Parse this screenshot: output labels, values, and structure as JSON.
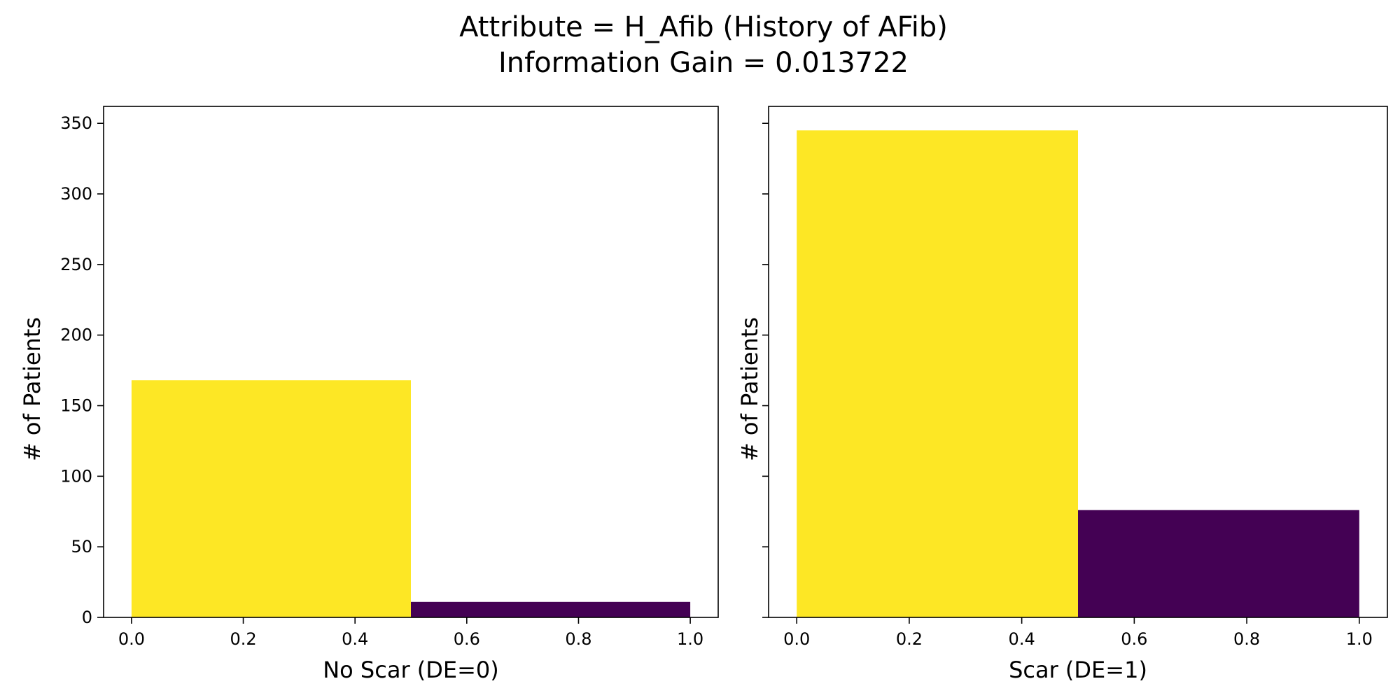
{
  "figure": {
    "title_line1": "Attribute = H_Afib (History of AFib)",
    "title_line2": "Information Gain = 0.013722"
  },
  "colors": {
    "yellow": "#fde725",
    "purple": "#440154",
    "axis": "#000000"
  },
  "chart_data": [
    {
      "type": "bar",
      "xlabel": "No Scar (DE=0)",
      "ylabel": "# of Patients",
      "xlim": [
        -0.05,
        1.05
      ],
      "ylim": [
        0,
        362
      ],
      "xticks": [
        0.0,
        0.2,
        0.4,
        0.6,
        0.8,
        1.0
      ],
      "xtick_labels": [
        "0.0",
        "0.2",
        "0.4",
        "0.6",
        "0.8",
        "1.0"
      ],
      "yticks": [
        0,
        50,
        100,
        150,
        200,
        250,
        300,
        350
      ],
      "ytick_labels": [
        "0",
        "50",
        "100",
        "150",
        "200",
        "250",
        "300",
        "350"
      ],
      "show_yticklabels": true,
      "grid": false,
      "bins": [
        {
          "x0": 0.0,
          "x1": 0.5,
          "value": 168,
          "color": "#fde725"
        },
        {
          "x0": 0.5,
          "x1": 1.0,
          "value": 11,
          "color": "#440154"
        }
      ]
    },
    {
      "type": "bar",
      "xlabel": "Scar (DE=1)",
      "ylabel": "# of Patients",
      "xlim": [
        -0.05,
        1.05
      ],
      "ylim": [
        0,
        362
      ],
      "xticks": [
        0.0,
        0.2,
        0.4,
        0.6,
        0.8,
        1.0
      ],
      "xtick_labels": [
        "0.0",
        "0.2",
        "0.4",
        "0.6",
        "0.8",
        "1.0"
      ],
      "yticks": [
        0,
        50,
        100,
        150,
        200,
        250,
        300,
        350
      ],
      "ytick_labels": [
        "0",
        "50",
        "100",
        "150",
        "200",
        "250",
        "300",
        "350"
      ],
      "show_yticklabels": false,
      "grid": false,
      "bins": [
        {
          "x0": 0.0,
          "x1": 0.5,
          "value": 345,
          "color": "#fde725"
        },
        {
          "x0": 0.5,
          "x1": 1.0,
          "value": 76,
          "color": "#440154"
        }
      ]
    }
  ]
}
